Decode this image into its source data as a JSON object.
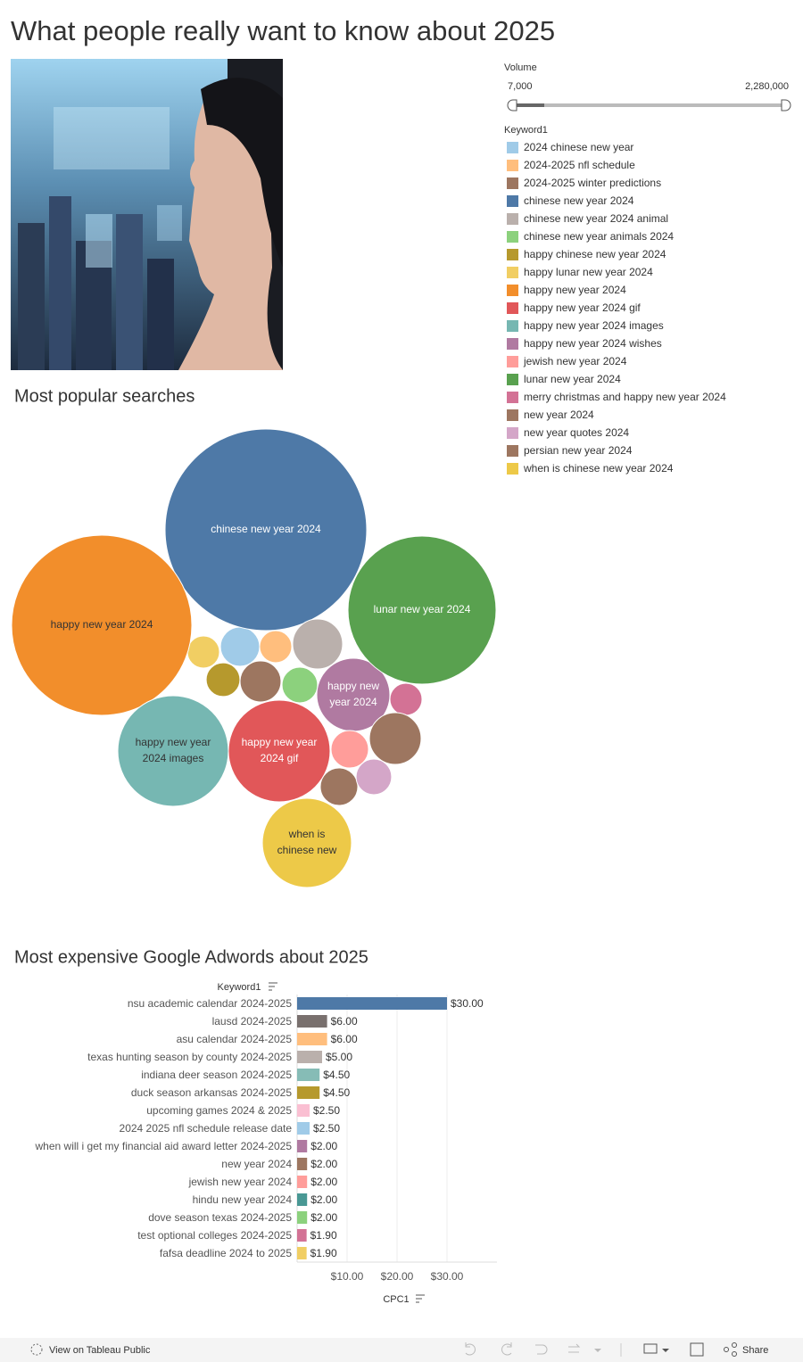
{
  "header": {
    "title": "What people really want to know about 2025"
  },
  "filters": {
    "volume": {
      "title": "Volume",
      "min": "7,000",
      "max": "2,280,000"
    }
  },
  "chart_data": [
    {
      "type": "bubble",
      "title": "Most popular searches",
      "legend_title": "Keyword1",
      "categories": [
        "2024 chinese new year",
        "2024-2025 nfl schedule",
        "2024-2025 winter predictions",
        "chinese new year 2024",
        "chinese new year 2024 animal",
        "chinese new year animals 2024",
        "happy chinese new year 2024",
        "happy lunar new year 2024",
        "happy new year 2024",
        "happy new year 2024 gif",
        "happy new year 2024 images",
        "happy new year 2024 wishes",
        "jewish new year 2024",
        "lunar new year 2024",
        "merry christmas and happy new year 2024",
        "new year 2024",
        "new year quotes 2024",
        "persian new year 2024",
        "when is chinese new year 2024"
      ],
      "colors": [
        "#a0cbe8",
        "#ffbe7d",
        "#9d7660",
        "#4e79a7",
        "#bab0ac",
        "#8cd17d",
        "#b6992d",
        "#f1ce63",
        "#f28e2b",
        "#e15759",
        "#76b7b2",
        "#b07aa1",
        "#ff9d9a",
        "#59a14f",
        "#d37295",
        "#9d7660",
        "#d4a6c8",
        "#9d7660",
        "#edc948"
      ],
      "values": [
        86000,
        58000,
        79000,
        2280000,
        140000,
        71000,
        64000,
        58000,
        1822000,
        580000,
        686000,
        300000,
        79000,
        1230000,
        58000,
        94000,
        71000,
        150000,
        446000
      ],
      "bubble_labels": [
        null,
        null,
        null,
        [
          "chinese new year 2024"
        ],
        null,
        null,
        null,
        null,
        [
          "happy new year 2024"
        ],
        [
          "happy new year",
          "2024 gif"
        ],
        [
          "happy new year",
          "2024 images"
        ],
        [
          "happy new",
          "year 2024"
        ],
        null,
        [
          "lunar new year 2024"
        ],
        null,
        null,
        null,
        null,
        [
          "when is",
          "chinese new"
        ]
      ]
    },
    {
      "type": "bar",
      "orientation": "horizontal",
      "title": "Most expensive Google Adwords about 2025",
      "y_label": "Keyword1",
      "x_label": "CPC1",
      "categories": [
        "nsu academic calendar 2024-2025",
        "lausd 2024-2025",
        "asu calendar 2024-2025",
        "texas hunting season by county 2024-2025",
        "indiana deer season 2024-2025",
        "duck season arkansas 2024-2025",
        "upcoming games 2024 & 2025",
        "2024 2025 nfl schedule release date",
        "when will i get my financial aid award letter 2024-2025",
        "new year 2024",
        "jewish new year 2024",
        "hindu new year 2024",
        "dove season texas 2024-2025",
        "test optional colleges 2024-2025",
        "fafsa deadline 2024 to 2025"
      ],
      "values": [
        30,
        6,
        6,
        5,
        4.5,
        4.5,
        2.5,
        2.5,
        2,
        2,
        2,
        2,
        2,
        1.9,
        1.9
      ],
      "value_labels": [
        "$30.00",
        "$6.00",
        "$6.00",
        "$5.00",
        "$4.50",
        "$4.50",
        "$2.50",
        "$2.50",
        "$2.00",
        "$2.00",
        "$2.00",
        "$2.00",
        "$2.00",
        "$1.90",
        "$1.90"
      ],
      "colors": [
        "#4e79a7",
        "#79706e",
        "#ffbe7d",
        "#bab0ac",
        "#86bcb6",
        "#b6992d",
        "#fabfd2",
        "#a0cbe8",
        "#b07aa1",
        "#9d7660",
        "#ff9d9a",
        "#499894",
        "#8cd17d",
        "#d37295",
        "#f1ce63"
      ],
      "xlim": [
        0,
        40
      ],
      "xticks": [
        {
          "value": 10,
          "label": "$10.00"
        },
        {
          "value": 20,
          "label": "$20.00"
        },
        {
          "value": 30,
          "label": "$30.00"
        }
      ],
      "grid": true
    }
  ],
  "footer": {
    "view_link": "View on Tableau Public",
    "share": "Share"
  }
}
